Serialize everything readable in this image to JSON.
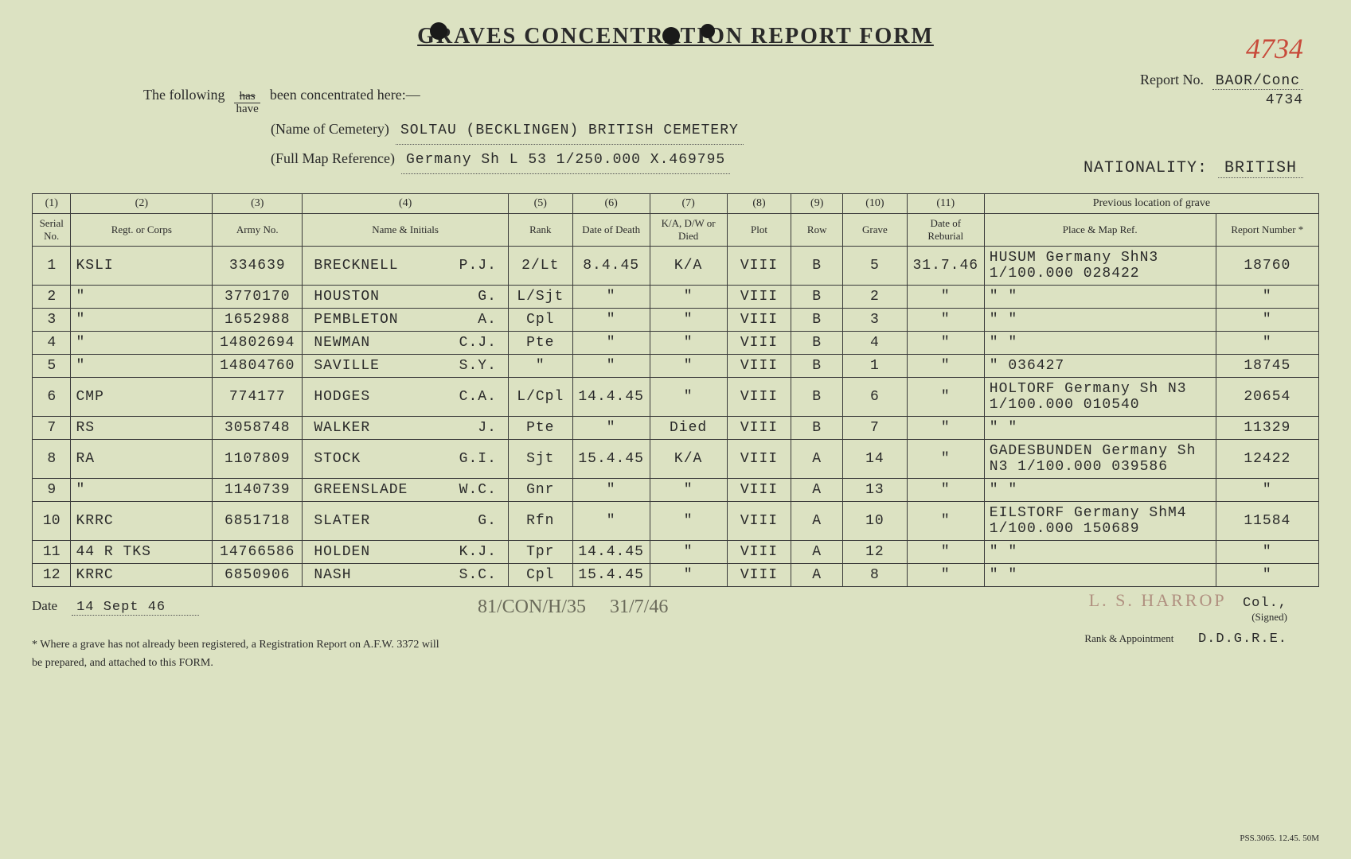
{
  "title": "GRAVES CONCENTRATION REPORT FORM",
  "handwritten_number": "4734",
  "report_no_label": "Report No.",
  "report_no": "BAOR/Conc",
  "report_no_sub": "4734",
  "intro_prefix": "The following",
  "frac_top": "has",
  "frac_bot": "have",
  "intro_suffix": "been concentrated here:—",
  "cemetery_label": "(Name of Cemetery)",
  "cemetery": "SOLTAU (BECKLINGEN) BRITISH CEMETERY",
  "mapref_label": "(Full Map Reference)",
  "mapref": "Germany Sh L 53   1/250.000    X.469795",
  "nationality_label": "NATIONALITY:",
  "nationality": "BRITISH",
  "columns": {
    "c1_num": "(1)",
    "c1": "Serial No.",
    "c2_num": "(2)",
    "c2": "Regt. or Corps",
    "c3_num": "(3)",
    "c3": "Army No.",
    "c4_num": "(4)",
    "c4": "Name & Initials",
    "c5_num": "(5)",
    "c5": "Rank",
    "c6_num": "(6)",
    "c6": "Date of Death",
    "c7_num": "(7)",
    "c7": "K/A, D/W or Died",
    "c8_num": "(8)",
    "c8": "Plot",
    "c9_num": "(9)",
    "c9": "Row",
    "c10_num": "(10)",
    "c10": "Grave",
    "c11_num": "(11)",
    "c11": "Date of Reburial",
    "prev_head": "Previous location of grave",
    "prev_place": "Place & Map Ref.",
    "prev_rep": "Report Number *"
  },
  "rows": [
    {
      "n": "1",
      "regt": "KSLI",
      "army": "334639",
      "surname": "BRECKNELL",
      "init": "P.J.",
      "rank": "2/Lt",
      "dod": "8.4.45",
      "kia": "K/A",
      "plot": "VIII",
      "row": "B",
      "grave": "5",
      "rebur": "31.7.46",
      "place": "HUSUM Germany ShN3 1/100.000 028422",
      "rep": "18760"
    },
    {
      "n": "2",
      "regt": "\"",
      "army": "3770170",
      "surname": "HOUSTON",
      "init": "G.",
      "rank": "L/Sjt",
      "dod": "\"",
      "kia": "\"",
      "plot": "VIII",
      "row": "B",
      "grave": "2",
      "rebur": "\"",
      "place": "\"          \"",
      "rep": "\""
    },
    {
      "n": "3",
      "regt": "\"",
      "army": "1652988",
      "surname": "PEMBLETON",
      "init": "A.",
      "rank": "Cpl",
      "dod": "\"",
      "kia": "\"",
      "plot": "VIII",
      "row": "B",
      "grave": "3",
      "rebur": "\"",
      "place": "\"          \"",
      "rep": "\""
    },
    {
      "n": "4",
      "regt": "\"",
      "army": "14802694",
      "surname": "NEWMAN",
      "init": "C.J.",
      "rank": "Pte",
      "dod": "\"",
      "kia": "\"",
      "plot": "VIII",
      "row": "B",
      "grave": "4",
      "rebur": "\"",
      "place": "\"          \"",
      "rep": "\""
    },
    {
      "n": "5",
      "regt": "\"",
      "army": "14804760",
      "surname": "SAVILLE",
      "init": "S.Y.",
      "rank": "\"",
      "dod": "\"",
      "kia": "\"",
      "plot": "VIII",
      "row": "B",
      "grave": "1",
      "rebur": "\"",
      "place": "\"      036427",
      "rep": "18745"
    },
    {
      "n": "6",
      "regt": "CMP",
      "army": "774177",
      "surname": "HODGES",
      "init": "C.A.",
      "rank": "L/Cpl",
      "dod": "14.4.45",
      "kia": "\"",
      "plot": "VIII",
      "row": "B",
      "grave": "6",
      "rebur": "\"",
      "place": "HOLTORF Germany Sh N3 1/100.000 010540",
      "rep": "20654"
    },
    {
      "n": "7",
      "regt": "RS",
      "army": "3058748",
      "surname": "WALKER",
      "init": "J.",
      "rank": "Pte",
      "dod": "\"",
      "kia": "Died",
      "plot": "VIII",
      "row": "B",
      "grave": "7",
      "rebur": "\"",
      "place": "\"          \"",
      "rep": "11329"
    },
    {
      "n": "8",
      "regt": "RA",
      "army": "1107809",
      "surname": "STOCK",
      "init": "G.I.",
      "rank": "Sjt",
      "dod": "15.4.45",
      "kia": "K/A",
      "plot": "VIII",
      "row": "A",
      "grave": "14",
      "rebur": "\"",
      "place": "GADESBUNDEN Germany Sh N3 1/100.000 039586",
      "rep": "12422"
    },
    {
      "n": "9",
      "regt": "\"",
      "army": "1140739",
      "surname": "GREENSLADE",
      "init": "W.C.",
      "rank": "Gnr",
      "dod": "\"",
      "kia": "\"",
      "plot": "VIII",
      "row": "A",
      "grave": "13",
      "rebur": "\"",
      "place": "\"          \"",
      "rep": "\""
    },
    {
      "n": "10",
      "regt": "KRRC",
      "army": "6851718",
      "surname": "SLATER",
      "init": "G.",
      "rank": "Rfn",
      "dod": "\"",
      "kia": "\"",
      "plot": "VIII",
      "row": "A",
      "grave": "10",
      "rebur": "\"",
      "place": "EILSTORF Germany ShM4 1/100.000 150689",
      "rep": "11584"
    },
    {
      "n": "11",
      "regt": "44 R TKS",
      "army": "14766586",
      "surname": "HOLDEN",
      "init": "K.J.",
      "rank": "Tpr",
      "dod": "14.4.45",
      "kia": "\"",
      "plot": "VIII",
      "row": "A",
      "grave": "12",
      "rebur": "\"",
      "place": "\"          \"",
      "rep": "\""
    },
    {
      "n": "12",
      "regt": "KRRC",
      "army": "6850906",
      "surname": "NASH",
      "init": "S.C.",
      "rank": "Cpl",
      "dod": "15.4.45",
      "kia": "\"",
      "plot": "VIII",
      "row": "A",
      "grave": "8",
      "rebur": "\"",
      "place": "\"          \"",
      "rep": "\""
    }
  ],
  "footer": {
    "date_label": "Date",
    "date": "14 Sept 46",
    "middle1": "81/CON/H/35",
    "middle2": "31/7/46",
    "sig_name": "L. S. HARROP",
    "sig_suffix": "Col.,",
    "signed_label": "(Signed)",
    "rank_label": "Rank & Appointment",
    "rank_val": "D.D.G.R.E.",
    "note1": "* Where a grave has not already been registered, a Registration Report on A.F.W. 3372 will",
    "note2": "be prepared, and attached to this FORM.",
    "pss": "PSS.3065. 12.45. 50M"
  },
  "col_widths": [
    "3%",
    "11%",
    "7%",
    "16%",
    "5%",
    "6%",
    "6%",
    "5%",
    "4%",
    "5%",
    "6%",
    "18%",
    "8%"
  ],
  "colors": {
    "bg": "#dce2c2",
    "ink": "#2a2a2a",
    "red": "#c84a3a",
    "grey": "#6a6a5a"
  }
}
